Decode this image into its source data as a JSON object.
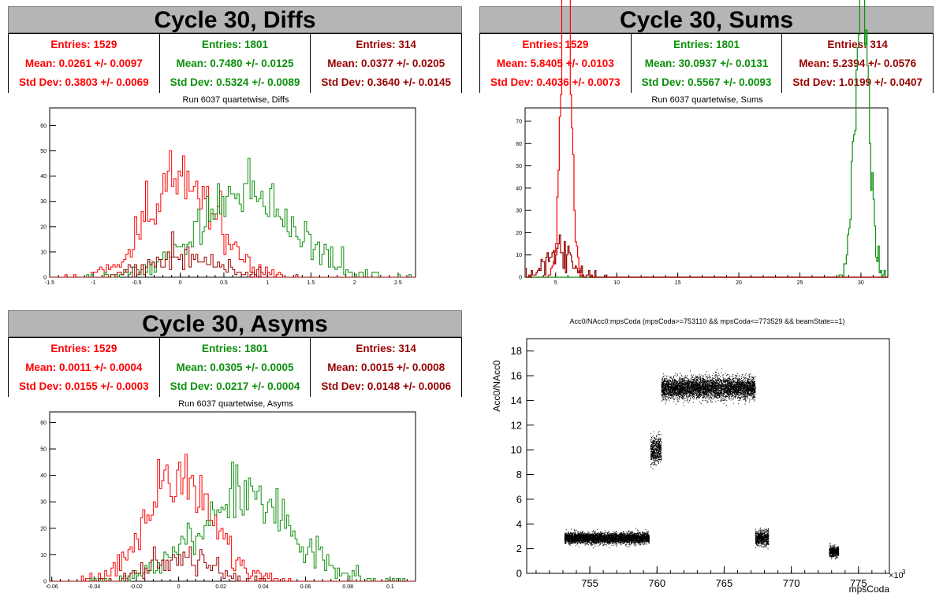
{
  "panels": {
    "diffs": {
      "title": "Cycle 30, Diffs",
      "stats": [
        {
          "entries": "Entries: 1529",
          "mean": "Mean: 0.0261 +/- 0.0097",
          "std": "Std Dev: 0.3803 +/- 0.0069"
        },
        {
          "entries": "Entries: 1801",
          "mean": "Mean: 0.7480 +/- 0.0125",
          "std": "Std Dev: 0.5324 +/- 0.0089"
        },
        {
          "entries": "Entries: 314",
          "mean": "Mean: 0.0377 +/- 0.0205",
          "std": "Std Dev: 0.3640 +/- 0.0145"
        }
      ],
      "subtitle": "Run 6037 quartetwise, Diffs"
    },
    "sums": {
      "title": "Cycle 30, Sums",
      "stats": [
        {
          "entries": "Entries: 1529",
          "mean": "Mean: 5.8405 +/- 0.0103",
          "std": "Std Dev: 0.4036 +/- 0.0073"
        },
        {
          "entries": "Entries: 1801",
          "mean": "Mean: 30.0937 +/- 0.0131",
          "std": "Std Dev: 0.5567 +/- 0.0093"
        },
        {
          "entries": "Entries: 314",
          "mean": "Mean: 5.2394 +/- 0.0576",
          "std": "Std Dev: 1.0199 +/- 0.0407"
        }
      ],
      "subtitle": "Run 6037 quartetwise, Sums"
    },
    "asyms": {
      "title": "Cycle 30, Asyms",
      "stats": [
        {
          "entries": "Entries: 1529",
          "mean": "Mean: 0.0011 +/- 0.0004",
          "std": "Std Dev: 0.0155 +/- 0.0003"
        },
        {
          "entries": "Entries: 1801",
          "mean": "Mean: 0.0305 +/- 0.0005",
          "std": "Std Dev: 0.0217 +/- 0.0004"
        },
        {
          "entries": "Entries: 314",
          "mean": "Mean: 0.0015 +/- 0.0008",
          "std": "Std Dev: 0.0148 +/- 0.0006"
        }
      ],
      "subtitle": "Run 6037 quartetwise, Asyms"
    },
    "scatter": {
      "title": "Acc0/NAcc0:mpsCoda (mpsCoda>=753110 && mpsCoda<=773529 && beamState==1)"
    }
  },
  "colors": {
    "series0": "#ff0000",
    "series1": "#0b8f0b",
    "series2": "#990000",
    "points": "#000000"
  },
  "chart_data": [
    {
      "type": "histogram",
      "title": "Run 6037 quartetwise, Diffs",
      "xlim": [
        -1.5,
        2.7
      ],
      "ylim": [
        0,
        67
      ],
      "xticks": [
        "-1.5",
        "-1",
        "-0.5",
        "0",
        "0.5",
        "1",
        "1.5",
        "2",
        "2.5"
      ],
      "yticks": [
        "0",
        "10",
        "20",
        "30",
        "40",
        "50",
        "60"
      ],
      "series": [
        {
          "entries": 1529,
          "mean": 0.0261,
          "std": 0.3803
        },
        {
          "entries": 1801,
          "mean": 0.748,
          "std": 0.5324
        },
        {
          "entries": 314,
          "mean": 0.0377,
          "std": 0.364
        }
      ]
    },
    {
      "type": "histogram",
      "title": "Run 6037 quartetwise, Sums",
      "xlim": [
        2.5,
        32.2
      ],
      "ylim": [
        0,
        76
      ],
      "xticks": [
        "5",
        "10",
        "15",
        "20",
        "25",
        "30"
      ],
      "yticks": [
        "0",
        "10",
        "20",
        "30",
        "40",
        "50",
        "60",
        "70"
      ],
      "series": [
        {
          "entries": 1529,
          "mean": 5.8405,
          "std": 0.4036
        },
        {
          "entries": 1801,
          "mean": 30.0937,
          "std": 0.5567
        },
        {
          "entries": 314,
          "mean": 5.2394,
          "std": 1.0199
        }
      ]
    },
    {
      "type": "histogram",
      "title": "Run 6037 quartetwise, Asyms",
      "xlim": [
        -0.061,
        0.112
      ],
      "ylim": [
        0,
        64
      ],
      "xticks": [
        "-0.06",
        "-0.04",
        "-0.02",
        "0",
        "0.02",
        "0.04",
        "0.06",
        "0.08",
        "0.1"
      ],
      "yticks": [
        "0",
        "10",
        "20",
        "30",
        "40",
        "50",
        "60"
      ],
      "series": [
        {
          "entries": 1529,
          "mean": 0.0011,
          "std": 0.0155
        },
        {
          "entries": 1801,
          "mean": 0.0305,
          "std": 0.0217
        },
        {
          "entries": 314,
          "mean": 0.0015,
          "std": 0.0148
        }
      ]
    },
    {
      "type": "scatter",
      "title": "Acc0/NAcc0:mpsCoda (mpsCoda>=753110 && mpsCoda<=773529 && beamState==1)",
      "xlabel": "mpsCoda",
      "ylabel": "Acc0/NAcc0",
      "xlim": [
        750.3,
        777.3
      ],
      "ylim": [
        0,
        19
      ],
      "xticks": [
        "755",
        "760",
        "765",
        "770",
        "775"
      ],
      "yticks": [
        "0",
        "2",
        "4",
        "6",
        "8",
        "10",
        "12",
        "14",
        "16",
        "18"
      ],
      "x_multiplier": "×10",
      "x_multiplier_exp": "3",
      "clusters": [
        {
          "x": [
            753.1,
            759.4
          ],
          "y_center": 2.85,
          "y_spread": 0.35
        },
        {
          "x": [
            759.5,
            760.3
          ],
          "y_center": 10.0,
          "y_spread": 0.9
        },
        {
          "x": [
            760.3,
            767.3
          ],
          "y_center": 15.0,
          "y_spread": 0.7
        },
        {
          "x": [
            767.3,
            768.3
          ],
          "y_center": 2.85,
          "y_spread": 0.5
        },
        {
          "x": [
            772.8,
            773.5
          ],
          "y_center": 1.75,
          "y_spread": 0.35
        }
      ]
    }
  ]
}
